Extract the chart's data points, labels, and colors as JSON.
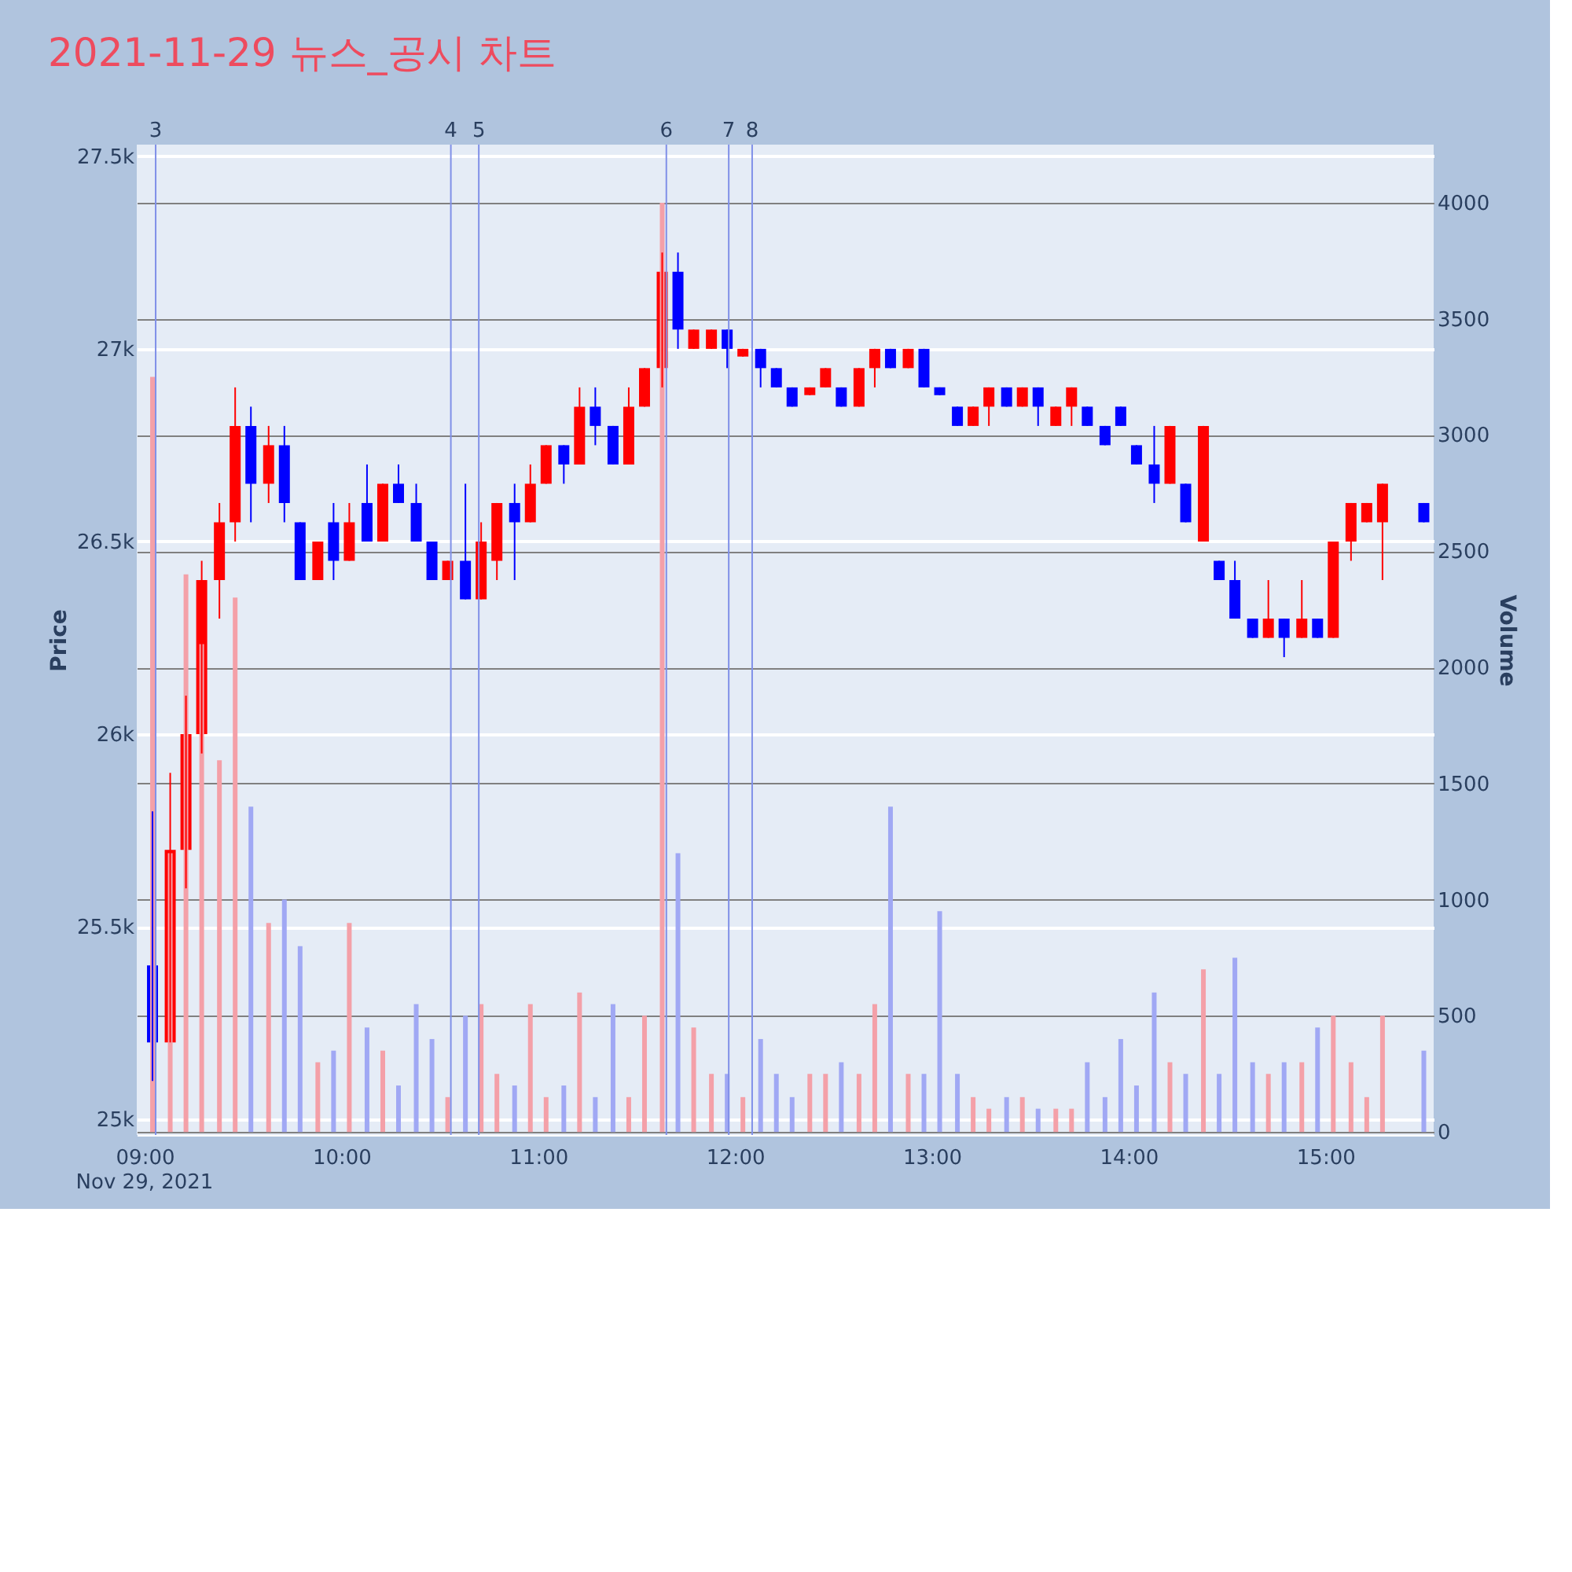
{
  "chart_data": {
    "type": "candlestick",
    "title": "2021-11-29 뉴스_공시 차트",
    "ylabel": "Price",
    "y2label": "Volume",
    "xlim": [
      8.96,
      15.55
    ],
    "xticks": [
      {
        "value": 9,
        "label": "09:00"
      },
      {
        "value": 10,
        "label": "10:00"
      },
      {
        "value": 11,
        "label": "11:00"
      },
      {
        "value": 12,
        "label": "12:00"
      },
      {
        "value": 13,
        "label": "13:00"
      },
      {
        "value": 14,
        "label": "14:00"
      },
      {
        "value": 15,
        "label": "15:00"
      }
    ],
    "ylim": [
      24960,
      27530
    ],
    "yticks": [
      {
        "value": 25000,
        "label": "25k"
      },
      {
        "value": 25500,
        "label": "25.5k"
      },
      {
        "value": 26000,
        "label": "26k"
      },
      {
        "value": 26500,
        "label": "26.5k"
      },
      {
        "value": 27000,
        "label": "27k"
      },
      {
        "value": 27500,
        "label": "27.5k"
      }
    ],
    "y2lim": [
      -13,
      4250
    ],
    "y2ticks": [
      0,
      500,
      1000,
      1500,
      2000,
      2500,
      3000,
      3500,
      4000
    ],
    "grid": "y",
    "annotations": [
      "Nov 29, 2021",
      "3",
      "4",
      "5",
      "6",
      "7",
      "8"
    ],
    "ref_lines": [
      {
        "axis": "x",
        "value": 9.056,
        "color": "#8090e8"
      },
      {
        "axis": "x",
        "value": 10.556,
        "color": "#8090e8"
      },
      {
        "axis": "x",
        "value": 10.698,
        "color": "#8090e8"
      },
      {
        "axis": "x",
        "value": 11.651,
        "color": "#8090e8"
      },
      {
        "axis": "x",
        "value": 11.968,
        "color": "#8090e8"
      },
      {
        "axis": "x",
        "value": 12.087,
        "color": "#8090e8"
      }
    ],
    "series": [
      {
        "type": "candlestick",
        "x": [
          9.04,
          9.13,
          9.21,
          9.29,
          9.38,
          9.46,
          9.54,
          9.63,
          9.71,
          9.79,
          9.88,
          9.96,
          10.04,
          10.13,
          10.21,
          10.29,
          10.38,
          10.46,
          10.54,
          10.63,
          10.71,
          10.79,
          10.88,
          10.96,
          11.04,
          11.13,
          11.21,
          11.29,
          11.38,
          11.46,
          11.54,
          11.63,
          11.71,
          11.79,
          11.88,
          11.96,
          12.04,
          12.13,
          12.21,
          12.29,
          12.38,
          12.46,
          12.54,
          12.63,
          12.71,
          12.79,
          12.88,
          12.96,
          13.04,
          13.13,
          13.21,
          13.29,
          13.38,
          13.46,
          13.54,
          13.63,
          13.71,
          13.79,
          13.88,
          13.96,
          14.04,
          14.13,
          14.21,
          14.29,
          14.38,
          14.46,
          14.54,
          14.63,
          14.71,
          14.79,
          14.88,
          14.96,
          15.04,
          15.13,
          15.21,
          15.29,
          15.5
        ],
        "ohlc": [
          [
            25400,
            25800,
            25100,
            25200
          ],
          [
            25200,
            25900,
            25200,
            25700
          ],
          [
            25700,
            26100,
            25600,
            26000
          ],
          [
            26000,
            26450,
            25950,
            26400
          ],
          [
            26400,
            26600,
            26300,
            26550
          ],
          [
            26550,
            26900,
            26500,
            26800
          ],
          [
            26800,
            26850,
            26550,
            26650
          ],
          [
            26650,
            26800,
            26600,
            26750
          ],
          [
            26750,
            26800,
            26550,
            26600
          ],
          [
            26550,
            26550,
            26400,
            26400
          ],
          [
            26400,
            26500,
            26400,
            26500
          ],
          [
            26550,
            26600,
            26400,
            26450
          ],
          [
            26450,
            26600,
            26450,
            26550
          ],
          [
            26600,
            26700,
            26500,
            26500
          ],
          [
            26500,
            26650,
            26500,
            26650
          ],
          [
            26650,
            26700,
            26600,
            26600
          ],
          [
            26600,
            26650,
            26500,
            26500
          ],
          [
            26500,
            26500,
            26400,
            26400
          ],
          [
            26400,
            26450,
            26400,
            26450
          ],
          [
            26450,
            26650,
            26350,
            26350
          ],
          [
            26350,
            26550,
            26350,
            26500
          ],
          [
            26450,
            26600,
            26400,
            26600
          ],
          [
            26600,
            26650,
            26400,
            26550
          ],
          [
            26550,
            26700,
            26550,
            26650
          ],
          [
            26650,
            26750,
            26650,
            26750
          ],
          [
            26750,
            26750,
            26650,
            26700
          ],
          [
            26700,
            26900,
            26700,
            26850
          ],
          [
            26850,
            26900,
            26750,
            26800
          ],
          [
            26800,
            26800,
            26700,
            26700
          ],
          [
            26700,
            26900,
            26700,
            26850
          ],
          [
            26850,
            26950,
            26850,
            26950
          ],
          [
            26950,
            27250,
            26900,
            27200
          ],
          [
            27200,
            27250,
            27000,
            27050
          ],
          [
            27000,
            27050,
            27000,
            27050
          ],
          [
            27000,
            27050,
            27000,
            27050
          ],
          [
            27050,
            27050,
            26950,
            27000
          ],
          [
            26980,
            27000,
            26980,
            27000
          ],
          [
            27000,
            27000,
            26900,
            26950
          ],
          [
            26950,
            26950,
            26900,
            26900
          ],
          [
            26900,
            26900,
            26850,
            26850
          ],
          [
            26880,
            26900,
            26880,
            26900
          ],
          [
            26900,
            26950,
            26900,
            26950
          ],
          [
            26900,
            26900,
            26850,
            26850
          ],
          [
            26850,
            26950,
            26850,
            26950
          ],
          [
            26950,
            27000,
            26900,
            27000
          ],
          [
            27000,
            27000,
            26950,
            26950
          ],
          [
            26950,
            27000,
            26950,
            27000
          ],
          [
            27000,
            27000,
            26900,
            26900
          ],
          [
            26900,
            26900,
            26880,
            26880
          ],
          [
            26850,
            26850,
            26800,
            26800
          ],
          [
            26800,
            26850,
            26800,
            26850
          ],
          [
            26850,
            26900,
            26800,
            26900
          ],
          [
            26900,
            26900,
            26850,
            26850
          ],
          [
            26850,
            26900,
            26850,
            26900
          ],
          [
            26900,
            26900,
            26800,
            26850
          ],
          [
            26800,
            26850,
            26800,
            26850
          ],
          [
            26850,
            26900,
            26800,
            26900
          ],
          [
            26850,
            26850,
            26800,
            26800
          ],
          [
            26800,
            26800,
            26750,
            26750
          ],
          [
            26850,
            26850,
            26800,
            26800
          ],
          [
            26750,
            26750,
            26700,
            26700
          ],
          [
            26700,
            26800,
            26600,
            26650
          ],
          [
            26650,
            26800,
            26650,
            26800
          ],
          [
            26650,
            26650,
            26550,
            26550
          ],
          [
            26500,
            26800,
            26500,
            26800
          ],
          [
            26450,
            26450,
            26400,
            26400
          ],
          [
            26400,
            26450,
            26300,
            26300
          ],
          [
            26300,
            26300,
            26250,
            26250
          ],
          [
            26250,
            26400,
            26250,
            26300
          ],
          [
            26300,
            26300,
            26200,
            26250
          ],
          [
            26250,
            26400,
            26250,
            26300
          ],
          [
            26300,
            26300,
            26250,
            26250
          ],
          [
            26250,
            26500,
            26250,
            26500
          ],
          [
            26500,
            26600,
            26450,
            26600
          ],
          [
            26550,
            26600,
            26550,
            26600
          ],
          [
            26550,
            26650,
            26400,
            26650
          ],
          [
            26600,
            26600,
            26550,
            26550
          ]
        ],
        "colors": [
          "#0000ff",
          "#ff0000",
          "#ff0000",
          "#ff0000",
          "#ff0000",
          "#ff0000",
          "#0000ff",
          "#ff0000",
          "#0000ff",
          "#0000ff",
          "#ff0000",
          "#0000ff",
          "#ff0000",
          "#0000ff",
          "#ff0000",
          "#0000ff",
          "#0000ff",
          "#0000ff",
          "#ff0000",
          "#0000ff",
          "#ff0000",
          "#ff0000",
          "#0000ff",
          "#ff0000",
          "#ff0000",
          "#0000ff",
          "#ff0000",
          "#0000ff",
          "#0000ff",
          "#ff0000",
          "#ff0000",
          "#ff0000",
          "#0000ff",
          "#ff0000",
          "#ff0000",
          "#0000ff",
          "#ff0000",
          "#0000ff",
          "#0000ff",
          "#0000ff",
          "#ff0000",
          "#ff0000",
          "#0000ff",
          "#ff0000",
          "#ff0000",
          "#0000ff",
          "#ff0000",
          "#0000ff",
          "#0000ff",
          "#0000ff",
          "#ff0000",
          "#ff0000",
          "#0000ff",
          "#ff0000",
          "#0000ff",
          "#ff0000",
          "#ff0000",
          "#0000ff",
          "#0000ff",
          "#0000ff",
          "#0000ff",
          "#0000ff",
          "#ff0000",
          "#0000ff",
          "#ff0000",
          "#0000ff",
          "#0000ff",
          "#0000ff",
          "#ff0000",
          "#0000ff",
          "#ff0000",
          "#0000ff",
          "#ff0000",
          "#ff0000",
          "#ff0000",
          "#ff0000",
          "#0000ff"
        ]
      },
      {
        "type": "bar",
        "axis": "y2",
        "x": [
          9.04,
          9.13,
          9.21,
          9.29,
          9.38,
          9.46,
          9.54,
          9.63,
          9.71,
          9.79,
          9.88,
          9.96,
          10.04,
          10.13,
          10.21,
          10.29,
          10.38,
          10.46,
          10.54,
          10.63,
          10.71,
          10.79,
          10.88,
          10.96,
          11.04,
          11.13,
          11.21,
          11.29,
          11.38,
          11.46,
          11.54,
          11.63,
          11.71,
          11.79,
          11.88,
          11.96,
          12.04,
          12.13,
          12.21,
          12.29,
          12.38,
          12.46,
          12.54,
          12.63,
          12.71,
          12.79,
          12.88,
          12.96,
          13.04,
          13.13,
          13.21,
          13.29,
          13.38,
          13.46,
          13.54,
          13.63,
          13.71,
          13.79,
          13.88,
          13.96,
          14.04,
          14.13,
          14.21,
          14.29,
          14.38,
          14.46,
          14.54,
          14.63,
          14.71,
          14.79,
          14.88,
          14.96,
          15.04,
          15.13,
          15.21,
          15.29,
          15.5
        ],
        "values": [
          3250,
          1200,
          2400,
          2100,
          1600,
          2300,
          1400,
          900,
          1000,
          800,
          300,
          350,
          900,
          450,
          350,
          200,
          550,
          400,
          150,
          500,
          550,
          250,
          200,
          550,
          150,
          200,
          600,
          150,
          550,
          150,
          500,
          4000,
          1200,
          450,
          250,
          250,
          150,
          400,
          250,
          150,
          250,
          250,
          300,
          250,
          550,
          1400,
          250,
          250,
          950,
          250,
          150,
          100,
          150,
          150,
          100,
          100,
          100,
          300,
          150,
          400,
          200,
          600,
          300,
          250,
          700,
          250,
          750,
          300,
          250,
          300,
          300,
          450,
          500,
          300,
          150,
          500,
          350
        ],
        "colors": [
          "#f4a0a8",
          "#f4a0a8",
          "#f4a0a8",
          "#f4a0a8",
          "#f4a0a8",
          "#f4a0a8",
          "#a0a8f4",
          "#f4a0a8",
          "#a0a8f4",
          "#a0a8f4",
          "#f4a0a8",
          "#a0a8f4",
          "#f4a0a8",
          "#a0a8f4",
          "#f4a0a8",
          "#a0a8f4",
          "#a0a8f4",
          "#a0a8f4",
          "#f4a0a8",
          "#a0a8f4",
          "#f4a0a8",
          "#f4a0a8",
          "#a0a8f4",
          "#f4a0a8",
          "#f4a0a8",
          "#a0a8f4",
          "#f4a0a8",
          "#a0a8f4",
          "#a0a8f4",
          "#f4a0a8",
          "#f4a0a8",
          "#f4a0a8",
          "#a0a8f4",
          "#f4a0a8",
          "#f4a0a8",
          "#a0a8f4",
          "#f4a0a8",
          "#a0a8f4",
          "#a0a8f4",
          "#a0a8f4",
          "#f4a0a8",
          "#f4a0a8",
          "#a0a8f4",
          "#f4a0a8",
          "#f4a0a8",
          "#a0a8f4",
          "#f4a0a8",
          "#a0a8f4",
          "#a0a8f4",
          "#a0a8f4",
          "#f4a0a8",
          "#f4a0a8",
          "#a0a8f4",
          "#f4a0a8",
          "#a0a8f4",
          "#f4a0a8",
          "#f4a0a8",
          "#a0a8f4",
          "#a0a8f4",
          "#a0a8f4",
          "#a0a8f4",
          "#a0a8f4",
          "#f4a0a8",
          "#a0a8f4",
          "#f4a0a8",
          "#a0a8f4",
          "#a0a8f4",
          "#a0a8f4",
          "#f4a0a8",
          "#a0a8f4",
          "#f4a0a8",
          "#a0a8f4",
          "#f4a0a8",
          "#f4a0a8",
          "#f4a0a8",
          "#f4a0a8",
          "#a0a8f4"
        ]
      }
    ]
  }
}
